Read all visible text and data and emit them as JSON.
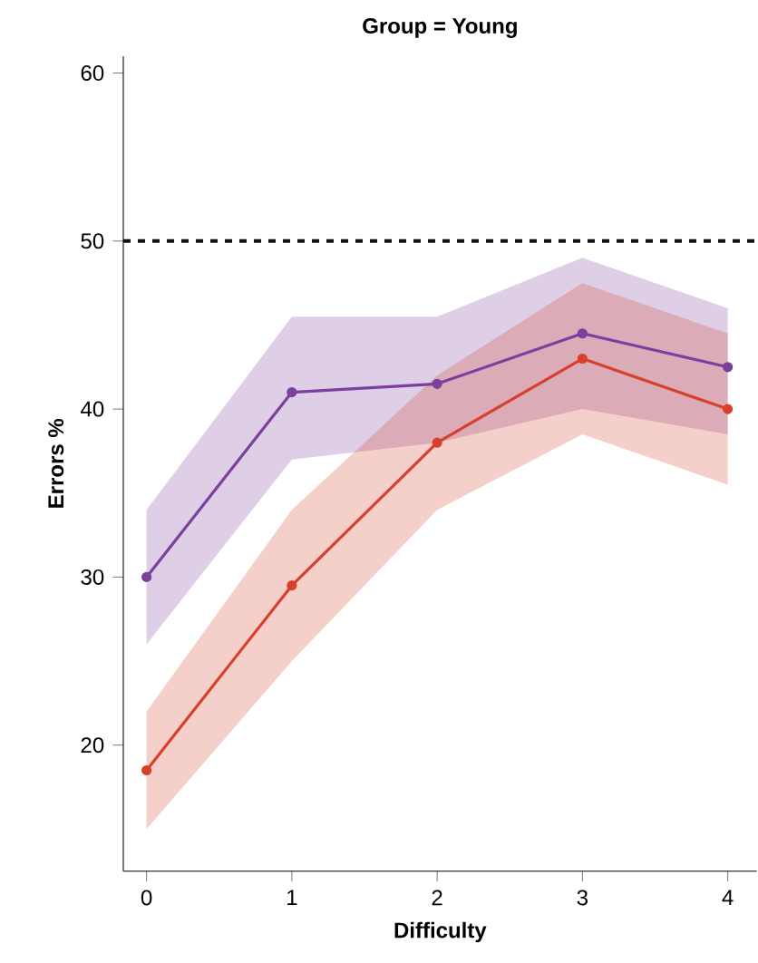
{
  "chart_data": {
    "type": "line",
    "title": "Group = Young",
    "xlabel": "Difficulty",
    "ylabel": "Errors %",
    "x": [
      0,
      1,
      2,
      3,
      4
    ],
    "series": [
      {
        "color": "#7b3f9e",
        "values": [
          30,
          41,
          41.5,
          44.5,
          42.5
        ],
        "lower": [
          26,
          37,
          38,
          40,
          38.5
        ],
        "upper": [
          34,
          45.5,
          45.5,
          49,
          46
        ]
      },
      {
        "color": "#d7402b",
        "values": [
          18.5,
          29.5,
          38,
          43,
          40
        ],
        "lower": [
          15,
          25,
          34,
          38.5,
          35.5
        ],
        "upper": [
          22,
          34,
          42,
          47.5,
          44.5
        ]
      }
    ],
    "xlim": [
      -0.16,
      4.2
    ],
    "ylim": [
      12.5,
      61
    ],
    "xticks": [
      0,
      1,
      2,
      3,
      4
    ],
    "yticks": [
      20,
      30,
      40,
      50,
      60
    ],
    "ref_lines": [
      {
        "axis": "y",
        "value": 50,
        "color": "#111111",
        "line_style": "dashed"
      }
    ],
    "marker": "circle",
    "line_style": "solid"
  }
}
